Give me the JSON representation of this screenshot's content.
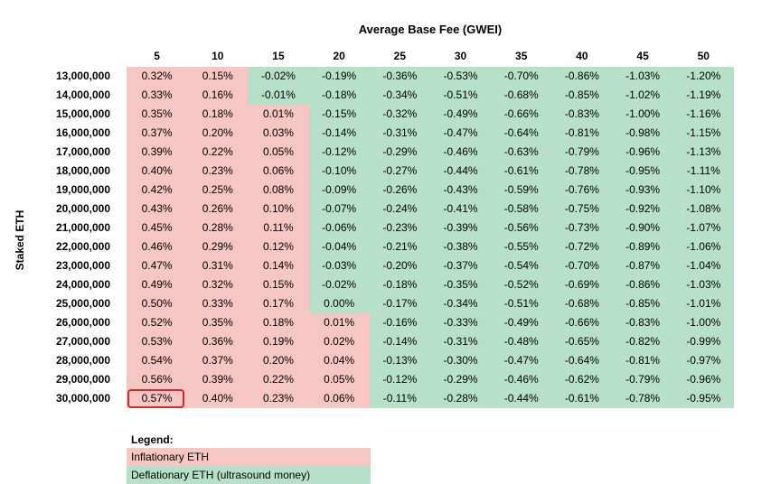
{
  "chart_data": {
    "type": "heatmap",
    "xlabel": "Average Base Fee (GWEI)",
    "ylabel": "Staked ETH",
    "x": [
      "5",
      "10",
      "15",
      "20",
      "25",
      "30",
      "35",
      "40",
      "45",
      "50"
    ],
    "y": [
      "13,000,000",
      "14,000,000",
      "15,000,000",
      "16,000,000",
      "17,000,000",
      "18,000,000",
      "19,000,000",
      "20,000,000",
      "21,000,000",
      "22,000,000",
      "23,000,000",
      "24,000,000",
      "25,000,000",
      "26,000,000",
      "27,000,000",
      "28,000,000",
      "29,000,000",
      "30,000,000"
    ],
    "values": [
      [
        "0.32%",
        "0.15%",
        "-0.02%",
        "-0.19%",
        "-0.36%",
        "-0.53%",
        "-0.70%",
        "-0.86%",
        "-1.03%",
        "-1.20%"
      ],
      [
        "0.33%",
        "0.16%",
        "-0.01%",
        "-0.18%",
        "-0.34%",
        "-0.51%",
        "-0.68%",
        "-0.85%",
        "-1.02%",
        "-1.19%"
      ],
      [
        "0.35%",
        "0.18%",
        "0.01%",
        "-0.15%",
        "-0.32%",
        "-0.49%",
        "-0.66%",
        "-0.83%",
        "-1.00%",
        "-1.16%"
      ],
      [
        "0.37%",
        "0.20%",
        "0.03%",
        "-0.14%",
        "-0.31%",
        "-0.47%",
        "-0.64%",
        "-0.81%",
        "-0.98%",
        "-1.15%"
      ],
      [
        "0.39%",
        "0.22%",
        "0.05%",
        "-0.12%",
        "-0.29%",
        "-0.46%",
        "-0.63%",
        "-0.79%",
        "-0.96%",
        "-1.13%"
      ],
      [
        "0.40%",
        "0.23%",
        "0.06%",
        "-0.10%",
        "-0.27%",
        "-0.44%",
        "-0.61%",
        "-0.78%",
        "-0.95%",
        "-1.11%"
      ],
      [
        "0.42%",
        "0.25%",
        "0.08%",
        "-0.09%",
        "-0.26%",
        "-0.43%",
        "-0.59%",
        "-0.76%",
        "-0.93%",
        "-1.10%"
      ],
      [
        "0.43%",
        "0.26%",
        "0.10%",
        "-0.07%",
        "-0.24%",
        "-0.41%",
        "-0.58%",
        "-0.75%",
        "-0.92%",
        "-1.08%"
      ],
      [
        "0.45%",
        "0.28%",
        "0.11%",
        "-0.06%",
        "-0.23%",
        "-0.39%",
        "-0.56%",
        "-0.73%",
        "-0.90%",
        "-1.07%"
      ],
      [
        "0.46%",
        "0.29%",
        "0.12%",
        "-0.04%",
        "-0.21%",
        "-0.38%",
        "-0.55%",
        "-0.72%",
        "-0.89%",
        "-1.06%"
      ],
      [
        "0.47%",
        "0.31%",
        "0.14%",
        "-0.03%",
        "-0.20%",
        "-0.37%",
        "-0.54%",
        "-0.70%",
        "-0.87%",
        "-1.04%"
      ],
      [
        "0.49%",
        "0.32%",
        "0.15%",
        "-0.02%",
        "-0.18%",
        "-0.35%",
        "-0.52%",
        "-0.69%",
        "-0.86%",
        "-1.03%"
      ],
      [
        "0.50%",
        "0.33%",
        "0.17%",
        "0.00%",
        "-0.17%",
        "-0.34%",
        "-0.51%",
        "-0.68%",
        "-0.85%",
        "-1.01%"
      ],
      [
        "0.52%",
        "0.35%",
        "0.18%",
        "0.01%",
        "-0.16%",
        "-0.33%",
        "-0.49%",
        "-0.66%",
        "-0.83%",
        "-1.00%"
      ],
      [
        "0.53%",
        "0.36%",
        "0.19%",
        "0.02%",
        "-0.14%",
        "-0.31%",
        "-0.48%",
        "-0.65%",
        "-0.82%",
        "-0.99%"
      ],
      [
        "0.54%",
        "0.37%",
        "0.20%",
        "0.04%",
        "-0.13%",
        "-0.30%",
        "-0.47%",
        "-0.64%",
        "-0.81%",
        "-0.97%"
      ],
      [
        "0.56%",
        "0.39%",
        "0.22%",
        "0.05%",
        "-0.12%",
        "-0.29%",
        "-0.46%",
        "-0.62%",
        "-0.79%",
        "-0.96%"
      ],
      [
        "0.57%",
        "0.40%",
        "0.23%",
        "0.06%",
        "-0.11%",
        "-0.28%",
        "-0.44%",
        "-0.61%",
        "-0.78%",
        "-0.95%"
      ]
    ],
    "categories": [
      [
        "inflationary",
        "inflationary",
        "deflationary",
        "deflationary",
        "deflationary",
        "deflationary",
        "deflationary",
        "deflationary",
        "deflationary",
        "deflationary"
      ],
      [
        "inflationary",
        "inflationary",
        "deflationary",
        "deflationary",
        "deflationary",
        "deflationary",
        "deflationary",
        "deflationary",
        "deflationary",
        "deflationary"
      ],
      [
        "inflationary",
        "inflationary",
        "inflationary",
        "deflationary",
        "deflationary",
        "deflationary",
        "deflationary",
        "deflationary",
        "deflationary",
        "deflationary"
      ],
      [
        "inflationary",
        "inflationary",
        "inflationary",
        "deflationary",
        "deflationary",
        "deflationary",
        "deflationary",
        "deflationary",
        "deflationary",
        "deflationary"
      ],
      [
        "inflationary",
        "inflationary",
        "inflationary",
        "deflationary",
        "deflationary",
        "deflationary",
        "deflationary",
        "deflationary",
        "deflationary",
        "deflationary"
      ],
      [
        "inflationary",
        "inflationary",
        "inflationary",
        "deflationary",
        "deflationary",
        "deflationary",
        "deflationary",
        "deflationary",
        "deflationary",
        "deflationary"
      ],
      [
        "inflationary",
        "inflationary",
        "inflationary",
        "deflationary",
        "deflationary",
        "deflationary",
        "deflationary",
        "deflationary",
        "deflationary",
        "deflationary"
      ],
      [
        "inflationary",
        "inflationary",
        "inflationary",
        "deflationary",
        "deflationary",
        "deflationary",
        "deflationary",
        "deflationary",
        "deflationary",
        "deflationary"
      ],
      [
        "inflationary",
        "inflationary",
        "inflationary",
        "deflationary",
        "deflationary",
        "deflationary",
        "deflationary",
        "deflationary",
        "deflationary",
        "deflationary"
      ],
      [
        "inflationary",
        "inflationary",
        "inflationary",
        "deflationary",
        "deflationary",
        "deflationary",
        "deflationary",
        "deflationary",
        "deflationary",
        "deflationary"
      ],
      [
        "inflationary",
        "inflationary",
        "inflationary",
        "deflationary",
        "deflationary",
        "deflationary",
        "deflationary",
        "deflationary",
        "deflationary",
        "deflationary"
      ],
      [
        "inflationary",
        "inflationary",
        "inflationary",
        "deflationary",
        "deflationary",
        "deflationary",
        "deflationary",
        "deflationary",
        "deflationary",
        "deflationary"
      ],
      [
        "inflationary",
        "inflationary",
        "inflationary",
        "deflationary",
        "deflationary",
        "deflationary",
        "deflationary",
        "deflationary",
        "deflationary",
        "deflationary"
      ],
      [
        "inflationary",
        "inflationary",
        "inflationary",
        "inflationary",
        "deflationary",
        "deflationary",
        "deflationary",
        "deflationary",
        "deflationary",
        "deflationary"
      ],
      [
        "inflationary",
        "inflationary",
        "inflationary",
        "inflationary",
        "deflationary",
        "deflationary",
        "deflationary",
        "deflationary",
        "deflationary",
        "deflationary"
      ],
      [
        "inflationary",
        "inflationary",
        "inflationary",
        "inflationary",
        "deflationary",
        "deflationary",
        "deflationary",
        "deflationary",
        "deflationary",
        "deflationary"
      ],
      [
        "inflationary",
        "inflationary",
        "inflationary",
        "inflationary",
        "deflationary",
        "deflationary",
        "deflationary",
        "deflationary",
        "deflationary",
        "deflationary"
      ],
      [
        "inflationary",
        "inflationary",
        "inflationary",
        "inflationary",
        "deflationary",
        "deflationary",
        "deflationary",
        "deflationary",
        "deflationary",
        "deflationary"
      ]
    ],
    "highlight": {
      "row": 17,
      "col": 0
    },
    "colors": {
      "inflationary": "#f5c6c2",
      "deflationary": "#b7e0cb",
      "highlight": "#d6292b"
    },
    "grid": false
  },
  "legend": {
    "title": "Legend:",
    "items": [
      {
        "label": "Inflationary ETH",
        "category": "inflationary"
      },
      {
        "label": "Deflationary ETH (ultrasound money)",
        "category": "deflationary"
      }
    ]
  }
}
